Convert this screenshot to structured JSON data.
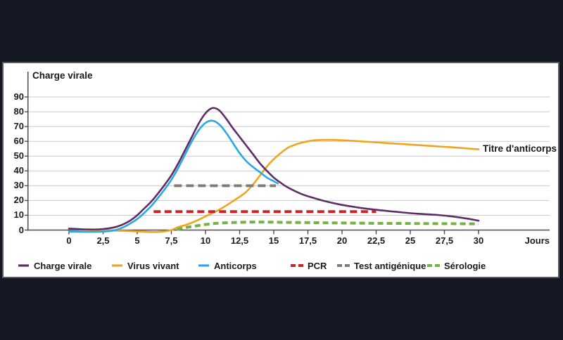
{
  "page": {
    "background_color": "#131822"
  },
  "panel": {
    "background": "#ffffff",
    "border_color": "#595959",
    "grid_color": "#c9c9c9",
    "axis_color": "#4d4d4d",
    "text_color": "#1a1a1a"
  },
  "chart_data": {
    "type": "line",
    "y_axis": {
      "title": "Charge virale",
      "ticks": [
        {
          "label": "0",
          "value": 0
        },
        {
          "label": "10",
          "value": 10
        },
        {
          "label": "20",
          "value": 20
        },
        {
          "label": "30",
          "value": 30
        },
        {
          "label": "40",
          "value": 40
        },
        {
          "label": "50",
          "value": 50
        },
        {
          "label": "60",
          "value": 60
        },
        {
          "label": "70",
          "value": 70
        },
        {
          "label": "80",
          "value": 80
        },
        {
          "label": "90",
          "value": 90
        }
      ],
      "range": [
        0,
        90
      ]
    },
    "x_axis": {
      "label": "Jours",
      "ticks": [
        {
          "label": "0",
          "value": 0
        },
        {
          "label": "2,5",
          "value": 2.5
        },
        {
          "label": "5",
          "value": 5
        },
        {
          "label": "7,5",
          "value": 7.5
        },
        {
          "label": "10",
          "value": 10
        },
        {
          "label": "12,5",
          "value": 12.5
        },
        {
          "label": "15",
          "value": 15
        },
        {
          "label": "17,5",
          "value": 17.5
        },
        {
          "label": "20",
          "value": 20
        },
        {
          "label": "22,5",
          "value": 22.5
        },
        {
          "label": "25",
          "value": 25
        },
        {
          "label": "27,5",
          "value": 27.5
        },
        {
          "label": "30",
          "value": 30
        }
      ],
      "range": [
        0,
        30
      ]
    },
    "annotation": {
      "text": "Titre d'anticorps",
      "x": 30,
      "y": 55
    },
    "grid": true,
    "legend_position": "bottom",
    "series": [
      {
        "name": "Charge virale",
        "color": "#5e2c66",
        "width": 2.6,
        "dash": null,
        "smooth": true,
        "points": [
          [
            0,
            1
          ],
          [
            0.5,
            0.8
          ],
          [
            1,
            0.5
          ],
          [
            1.5,
            0.4
          ],
          [
            2,
            0.4
          ],
          [
            2.5,
            0.7
          ],
          [
            3,
            1.3
          ],
          [
            3.5,
            2.3
          ],
          [
            4,
            4
          ],
          [
            4.5,
            6.5
          ],
          [
            5,
            10
          ],
          [
            5.5,
            14.5
          ],
          [
            6,
            19
          ],
          [
            6.5,
            24.5
          ],
          [
            7,
            30.5
          ],
          [
            7.5,
            37
          ],
          [
            8,
            45
          ],
          [
            8.5,
            54
          ],
          [
            9,
            63
          ],
          [
            9.5,
            72
          ],
          [
            10,
            79
          ],
          [
            10.5,
            82.5
          ],
          [
            11,
            81
          ],
          [
            11.5,
            75.5
          ],
          [
            12,
            69
          ],
          [
            12.5,
            63
          ],
          [
            13,
            57
          ],
          [
            13.5,
            51
          ],
          [
            14,
            45
          ],
          [
            14.5,
            40
          ],
          [
            15,
            35.5
          ],
          [
            15.5,
            32
          ],
          [
            16,
            29
          ],
          [
            17,
            24.5
          ],
          [
            18,
            21.5
          ],
          [
            19,
            19
          ],
          [
            20,
            17
          ],
          [
            21,
            15.5
          ],
          [
            22,
            14.2
          ],
          [
            23,
            13.2
          ],
          [
            24,
            12.3
          ],
          [
            25,
            11.4
          ],
          [
            26,
            10.8
          ],
          [
            27,
            10.2
          ],
          [
            28,
            9.3
          ],
          [
            29,
            8
          ],
          [
            29.5,
            7.2
          ],
          [
            30,
            6.3
          ]
        ]
      },
      {
        "name": "Virus vivant",
        "color": "#f0a41f",
        "width": 2.6,
        "dash": null,
        "smooth": true,
        "points": [
          [
            0,
            0.8
          ],
          [
            0.5,
            0.6
          ],
          [
            1,
            0.3
          ],
          [
            1.5,
            0.1
          ],
          [
            2,
            0
          ],
          [
            3,
            -0.3
          ],
          [
            4,
            -0.5
          ],
          [
            5,
            -0.9
          ],
          [
            5.5,
            -1.1
          ],
          [
            6,
            -1.3
          ],
          [
            6.5,
            -1.3
          ],
          [
            7,
            -0.9
          ],
          [
            7.5,
            0
          ],
          [
            8,
            2
          ],
          [
            8.5,
            3.3
          ],
          [
            9,
            5
          ],
          [
            9.5,
            7
          ],
          [
            10,
            9.3
          ],
          [
            10.5,
            11.5
          ],
          [
            11,
            13.8
          ],
          [
            11.5,
            16.5
          ],
          [
            12,
            19.5
          ],
          [
            12.5,
            22.5
          ],
          [
            13,
            26
          ],
          [
            13.5,
            31
          ],
          [
            14,
            37
          ],
          [
            14.5,
            43
          ],
          [
            15,
            48
          ],
          [
            15.5,
            52
          ],
          [
            16,
            55.5
          ],
          [
            16.5,
            57.5
          ],
          [
            17,
            59
          ],
          [
            17.5,
            60
          ],
          [
            18,
            60.7
          ],
          [
            19,
            61
          ],
          [
            20,
            60.7
          ],
          [
            21,
            60.2
          ],
          [
            22,
            59.6
          ],
          [
            23,
            59
          ],
          [
            24,
            58.4
          ],
          [
            25,
            57.8
          ],
          [
            26,
            57.2
          ],
          [
            27,
            56.6
          ],
          [
            28,
            56
          ],
          [
            29,
            55.3
          ],
          [
            30,
            54.6
          ]
        ]
      },
      {
        "name": "Anticorps",
        "color": "#29a9e1",
        "width": 2.6,
        "dash": null,
        "smooth": true,
        "points": [
          [
            0,
            -1
          ],
          [
            1,
            -1.2
          ],
          [
            2,
            -1.2
          ],
          [
            3,
            -0.7
          ],
          [
            3.5,
            0.2
          ],
          [
            4,
            2
          ],
          [
            4.5,
            4.5
          ],
          [
            5,
            7.5
          ],
          [
            5.5,
            11.5
          ],
          [
            6,
            16
          ],
          [
            6.5,
            21.5
          ],
          [
            7,
            27.5
          ],
          [
            7.5,
            34
          ],
          [
            8,
            42
          ],
          [
            8.5,
            51
          ],
          [
            9,
            60
          ],
          [
            9.5,
            67.5
          ],
          [
            10,
            72.5
          ],
          [
            10.5,
            74
          ],
          [
            11,
            71.5
          ],
          [
            11.5,
            66
          ],
          [
            12,
            59
          ],
          [
            12.5,
            52
          ],
          [
            13,
            46.5
          ],
          [
            13.5,
            42.5
          ],
          [
            14,
            39
          ],
          [
            14.5,
            35.5
          ],
          [
            15,
            33
          ],
          [
            15.3,
            31.5
          ]
        ]
      },
      {
        "name": "PCR",
        "color": "#d0202a",
        "width": 4,
        "dash": [
          10,
          5.5
        ],
        "smooth": false,
        "points": [
          [
            6.2,
            12.5
          ],
          [
            22.5,
            12.5
          ]
        ]
      },
      {
        "name": "Test antigénique",
        "color": "#7d7d7d",
        "width": 4,
        "dash": [
          11,
          6
        ],
        "smooth": false,
        "points": [
          [
            7.7,
            30
          ],
          [
            15.15,
            30
          ]
        ]
      },
      {
        "name": "Sérologie",
        "color": "#76b243",
        "width": 4,
        "dash": [
          8,
          5
        ],
        "smooth": true,
        "points": [
          [
            7.9,
            0.5
          ],
          [
            8.5,
            1.6
          ],
          [
            9,
            2.4
          ],
          [
            9.5,
            3.1
          ],
          [
            10,
            3.8
          ],
          [
            10.5,
            4.3
          ],
          [
            11,
            4.7
          ],
          [
            12,
            5.1
          ],
          [
            13,
            5.3
          ],
          [
            14,
            5.4
          ],
          [
            15,
            5.3
          ],
          [
            16,
            5.2
          ],
          [
            18,
            5
          ],
          [
            20,
            4.8
          ],
          [
            22,
            4.6
          ],
          [
            24,
            4.5
          ],
          [
            26,
            4.4
          ],
          [
            28,
            4.3
          ],
          [
            30,
            4.2
          ]
        ]
      }
    ],
    "legend": [
      {
        "label": "Charge virale",
        "color": "#5e2c66",
        "dash": false
      },
      {
        "label": "Virus vivant",
        "color": "#f0a41f",
        "dash": false
      },
      {
        "label": "Anticorps",
        "color": "#29a9e1",
        "dash": false
      },
      {
        "label": "PCR",
        "color": "#d0202a",
        "dash": true
      },
      {
        "label": "Test antigénique",
        "color": "#7d7d7d",
        "dash": true
      },
      {
        "label": "Sérologie",
        "color": "#76b243",
        "dash": true
      }
    ]
  }
}
